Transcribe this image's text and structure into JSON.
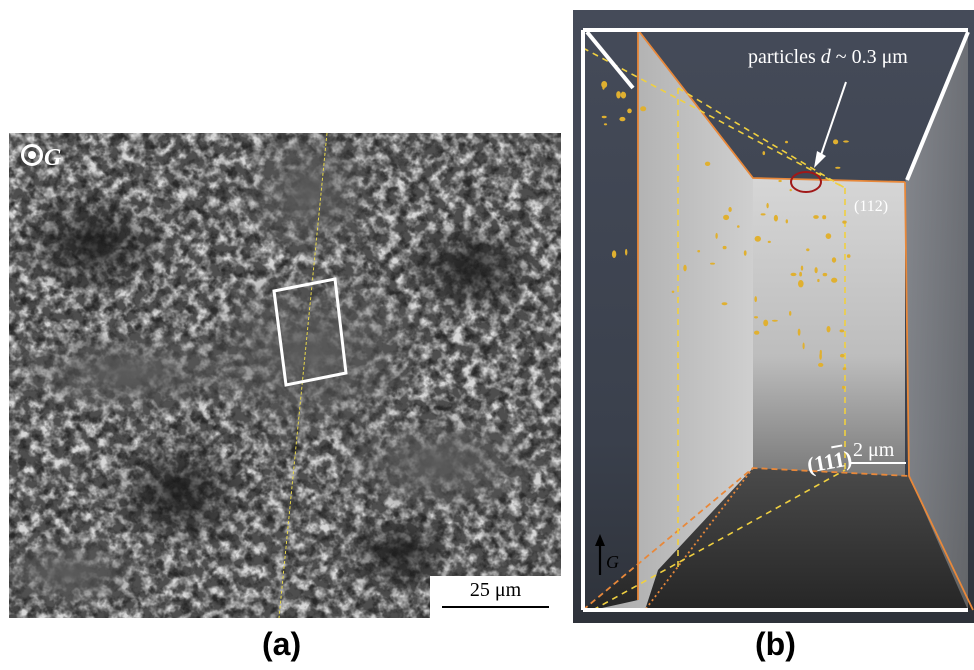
{
  "panel_a": {
    "caption": "(a)",
    "gravity_label": "G",
    "gravity_icon": "gravity-out-of-plane-icon",
    "scale_bar_label": "25 μm",
    "colors": {
      "background": "#4b4b4b",
      "bright_phase": "#d8d8d8",
      "dark_phase": "#1e1e1e",
      "trace_line": "#e8d84a",
      "roi_box": "#ffffff"
    }
  },
  "panel_b": {
    "caption": "(b)",
    "particles_label": "particles ",
    "particles_symbol": "d",
    "particles_size": " ~ 0.3 μm",
    "plane_label_112": "(112)",
    "plane_label_11bar1": "(11",
    "plane_label_11bar1_bar": "1",
    "plane_label_11bar1_close": ")",
    "scale_bar_label": "2 μm",
    "gravity_label": "G",
    "gravity_icon": "arrow-up-icon",
    "colors": {
      "background": "#3f4653",
      "plane": "#c8c8c8",
      "edges": "#e8883a",
      "dashed": "#f0d040",
      "particles": "#e0b030",
      "highlight": "#8b1a1a"
    }
  }
}
